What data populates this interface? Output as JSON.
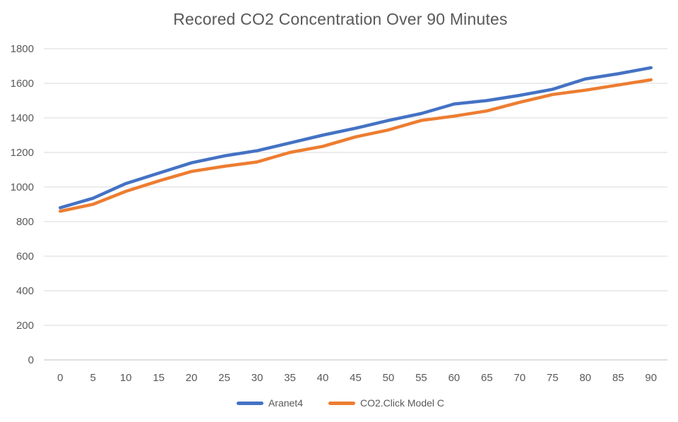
{
  "chart_data": {
    "type": "line",
    "title": "Recored CO2 Concentration Over 90 Minutes",
    "categories": [
      0,
      5,
      10,
      15,
      20,
      25,
      30,
      35,
      40,
      45,
      50,
      55,
      60,
      65,
      70,
      75,
      80,
      85,
      90
    ],
    "series": [
      {
        "name": "Aranet4",
        "color": "#4472C4",
        "values": [
          880,
          935,
          1020,
          1080,
          1140,
          1180,
          1210,
          1255,
          1300,
          1340,
          1385,
          1425,
          1480,
          1500,
          1530,
          1565,
          1625,
          1655,
          1690
        ]
      },
      {
        "name": "CO2.Click Model C",
        "color": "#ED7D31",
        "values": [
          860,
          900,
          975,
          1035,
          1090,
          1120,
          1145,
          1200,
          1235,
          1290,
          1330,
          1385,
          1410,
          1440,
          1490,
          1535,
          1560,
          1590,
          1620
        ]
      }
    ],
    "xlabel": "",
    "ylabel": "",
    "ylim": [
      0,
      1800
    ],
    "y_ticks": [
      0,
      200,
      400,
      600,
      800,
      1000,
      1200,
      1400,
      1600,
      1800
    ],
    "grid": true,
    "legend_position": "bottom",
    "colors": {
      "gridline": "#D9D9D9",
      "axis_line": "#BFBFBF",
      "tick_text": "#595959",
      "title_text": "#595959",
      "background": "#FFFFFF"
    }
  }
}
